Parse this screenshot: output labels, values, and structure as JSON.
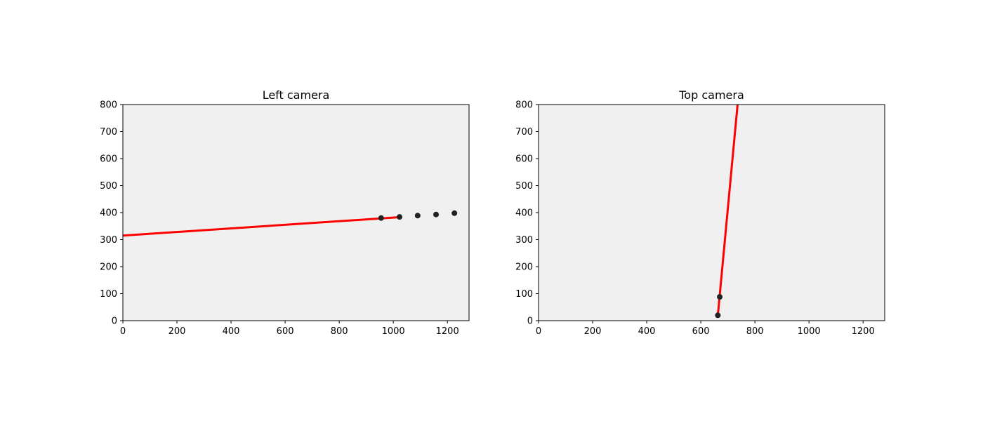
{
  "chart_data": [
    {
      "type": "scatter",
      "title": "Left camera",
      "xlabel": "",
      "ylabel": "",
      "xlim": [
        0,
        1280
      ],
      "ylim": [
        0,
        800
      ],
      "xticks": [
        0,
        200,
        400,
        600,
        800,
        1000,
        1200
      ],
      "yticks": [
        0,
        100,
        200,
        300,
        400,
        500,
        600,
        700,
        800
      ],
      "grid": false,
      "background": "#f0f0f0",
      "points": {
        "color": "#222222",
        "x": [
          955,
          1023,
          1090,
          1158,
          1226
        ],
        "y": [
          380,
          384,
          389,
          393,
          398
        ]
      },
      "line": {
        "color": "#ff0000",
        "x": [
          0,
          1023
        ],
        "y": [
          315,
          383
        ]
      }
    },
    {
      "type": "scatter",
      "title": "Top camera",
      "xlabel": "",
      "ylabel": "",
      "xlim": [
        0,
        1280
      ],
      "ylim": [
        0,
        800
      ],
      "xticks": [
        0,
        200,
        400,
        600,
        800,
        1000,
        1200
      ],
      "yticks": [
        0,
        100,
        200,
        300,
        400,
        500,
        600,
        700,
        800
      ],
      "grid": false,
      "background": "#f0f0f0",
      "points": {
        "color": "#222222",
        "x": [
          663,
          670
        ],
        "y": [
          20,
          88
        ]
      },
      "line": {
        "color": "#ff0000",
        "x": [
          663,
          736
        ],
        "y": [
          20,
          800
        ]
      }
    }
  ]
}
